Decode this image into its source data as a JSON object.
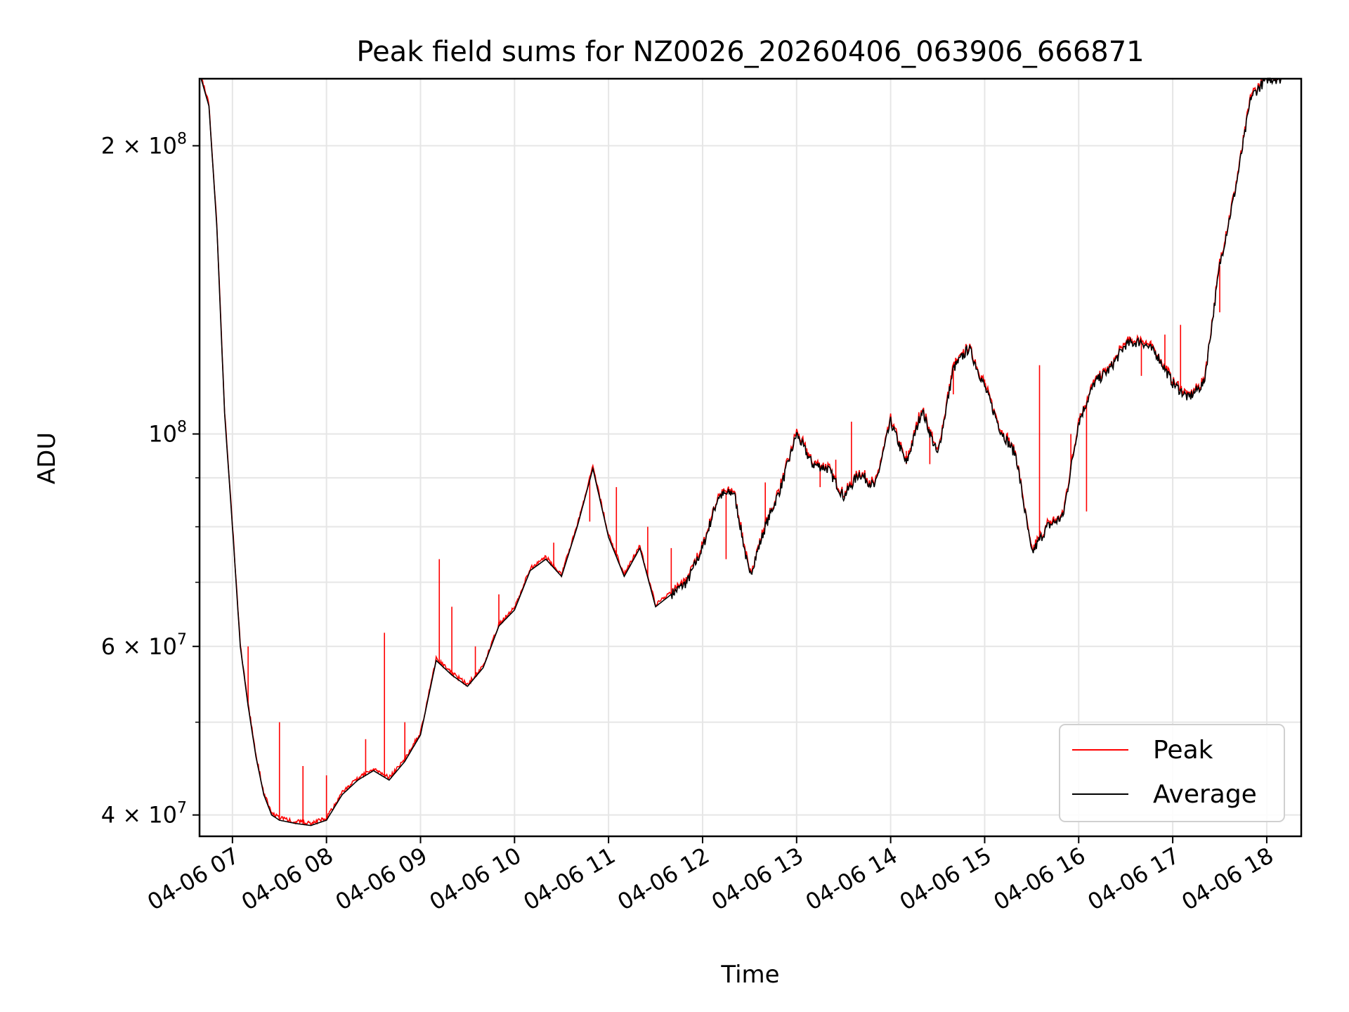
{
  "chart_data": {
    "type": "line",
    "title": "Peak field sums for NZ0026_20260406_063906_666871",
    "xlabel": "Time",
    "ylabel": "ADU",
    "y_scale": "log",
    "ylim": [
      38000000,
      235000000
    ],
    "xlim": [
      "04-06 06:39",
      "04-06 18:22"
    ],
    "x_ticks": [
      "04-06 07",
      "04-06 08",
      "04-06 09",
      "04-06 10",
      "04-06 11",
      "04-06 12",
      "04-06 13",
      "04-06 14",
      "04-06 15",
      "04-06 16",
      "04-06 17",
      "04-06 18"
    ],
    "y_ticks": [
      {
        "value": 40000000,
        "label": "4 × 10^7"
      },
      {
        "value": 60000000,
        "label": "6 × 10^7"
      },
      {
        "value": 100000000,
        "label": "10^8"
      },
      {
        "value": 200000000,
        "label": "2 × 10^8"
      }
    ],
    "y_minor_ticks": [
      50000000,
      70000000,
      80000000,
      90000000
    ],
    "grid": true,
    "legend_position": "lower-right",
    "series": [
      {
        "name": "Average",
        "color": "#000000",
        "x": [
          "06:40",
          "06:45",
          "06:50",
          "06:55",
          "07:00",
          "07:05",
          "07:10",
          "07:15",
          "07:20",
          "07:25",
          "07:30",
          "07:40",
          "07:50",
          "08:00",
          "08:10",
          "08:20",
          "08:30",
          "08:40",
          "08:50",
          "09:00",
          "09:10",
          "09:20",
          "09:30",
          "09:40",
          "09:50",
          "10:00",
          "10:10",
          "10:20",
          "10:30",
          "10:40",
          "10:50",
          "11:00",
          "11:10",
          "11:20",
          "11:30",
          "11:40",
          "11:50",
          "12:00",
          "12:10",
          "12:20",
          "12:30",
          "12:40",
          "12:50",
          "13:00",
          "13:10",
          "13:20",
          "13:30",
          "13:40",
          "13:50",
          "14:00",
          "14:10",
          "14:20",
          "14:30",
          "14:40",
          "14:50",
          "15:00",
          "15:10",
          "15:20",
          "15:30",
          "15:40",
          "15:50",
          "16:00",
          "16:10",
          "16:20",
          "16:30",
          "16:40",
          "16:50",
          "17:00",
          "17:10",
          "17:20",
          "17:30",
          "17:40",
          "17:50",
          "18:00",
          "18:05",
          "18:10",
          "18:15",
          "18:20"
        ],
        "values": [
          235000000,
          220000000,
          165000000,
          105000000,
          80000000,
          60000000,
          52000000,
          46000000,
          42000000,
          40000000,
          39500000,
          39200000,
          39000000,
          39500000,
          42000000,
          43500000,
          44500000,
          43500000,
          45500000,
          48500000,
          58000000,
          56000000,
          54500000,
          57000000,
          63000000,
          65500000,
          72000000,
          74000000,
          71000000,
          80000000,
          92000000,
          78000000,
          71000000,
          76000000,
          66000000,
          68000000,
          70000000,
          76000000,
          86000000,
          87000000,
          71000000,
          80000000,
          88000000,
          100000000,
          93000000,
          92000000,
          86000000,
          91000000,
          88000000,
          103000000,
          93000000,
          106000000,
          95000000,
          117000000,
          123000000,
          112000000,
          101000000,
          95000000,
          75000000,
          80000000,
          82000000,
          103000000,
          113000000,
          117000000,
          124000000,
          125000000,
          121000000,
          113000000,
          109000000,
          113000000,
          150000000,
          180000000,
          225000000,
          235000000,
          235000000,
          235000000,
          235000000,
          235000000
        ]
      },
      {
        "name": "Peak",
        "color": "#ff0000",
        "x": [
          "07:10",
          "07:30",
          "07:45",
          "08:00",
          "08:25",
          "08:37",
          "08:50",
          "09:12",
          "09:20",
          "09:35",
          "09:50",
          "10:25",
          "10:48",
          "11:05",
          "11:25",
          "11:40",
          "12:15",
          "12:40",
          "13:15",
          "13:25",
          "13:35",
          "14:10",
          "14:25",
          "14:40",
          "15:00",
          "15:35",
          "15:55",
          "16:05",
          "16:40",
          "16:55",
          "17:05",
          "17:30"
        ],
        "values": [
          60000000,
          50000000,
          45000000,
          44000000,
          48000000,
          62000000,
          50000000,
          74000000,
          66000000,
          60000000,
          68000000,
          77000000,
          81000000,
          88000000,
          80000000,
          76000000,
          74000000,
          89000000,
          88000000,
          94000000,
          103000000,
          96000000,
          93000000,
          110000000,
          114000000,
          118000000,
          100000000,
          83000000,
          115000000,
          127000000,
          130000000,
          134000000
        ]
      }
    ]
  },
  "legend": {
    "items": [
      {
        "label": "Peak",
        "color": "#ff0000"
      },
      {
        "label": "Average",
        "color": "#000000"
      }
    ]
  }
}
